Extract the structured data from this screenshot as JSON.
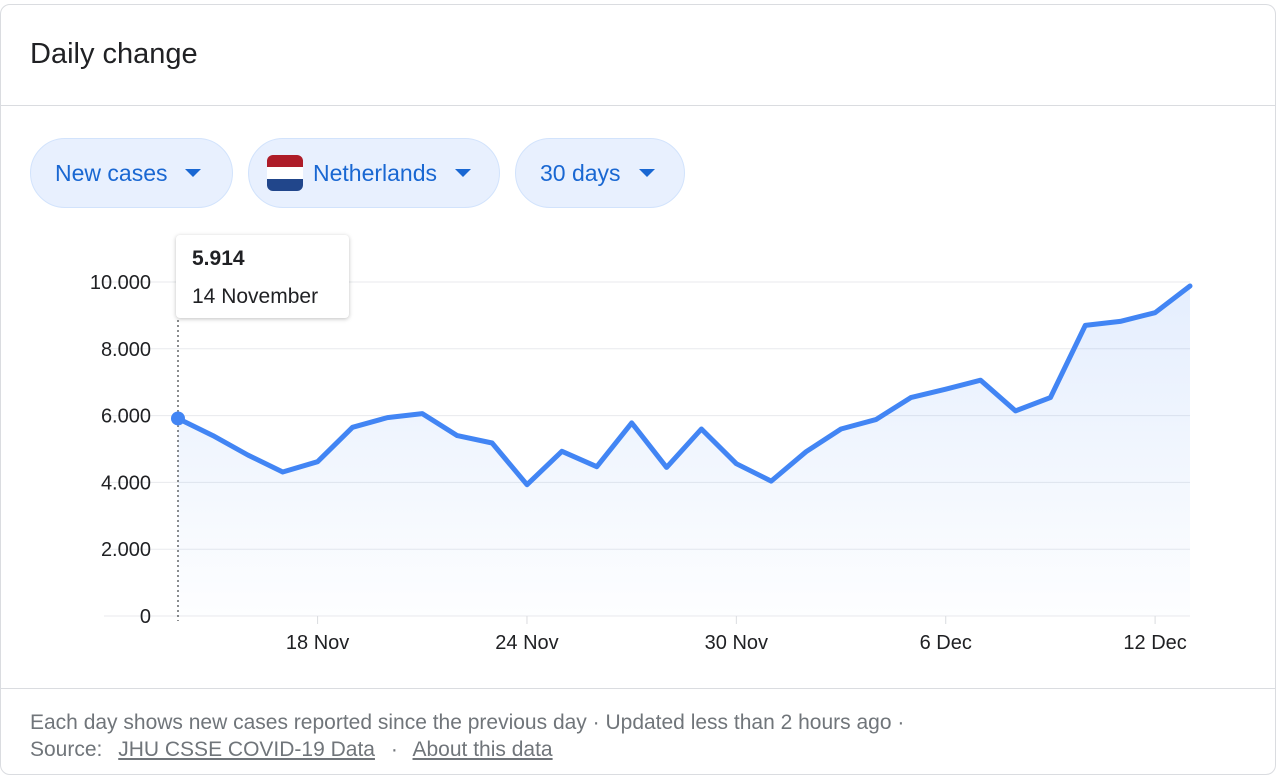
{
  "card": {
    "title": "Daily change"
  },
  "filters": {
    "metric": "New cases",
    "country": "Netherlands",
    "range": "30 days"
  },
  "flag_colors": [
    "#ae1c28",
    "#ffffff",
    "#21468b"
  ],
  "colors": {
    "line": "#4285f4",
    "accent": "#1967d2",
    "chip_bg": "#e8f0fe"
  },
  "tooltip": {
    "value": "5.914",
    "date": "14 November"
  },
  "chart_data": {
    "type": "area",
    "x": [
      "2020-11-14",
      "2020-11-15",
      "2020-11-16",
      "2020-11-17",
      "2020-11-18",
      "2020-11-19",
      "2020-11-20",
      "2020-11-21",
      "2020-11-22",
      "2020-11-23",
      "2020-11-24",
      "2020-11-25",
      "2020-11-26",
      "2020-11-27",
      "2020-11-28",
      "2020-11-29",
      "2020-11-30",
      "2020-12-01",
      "2020-12-02",
      "2020-12-03",
      "2020-12-04",
      "2020-12-05",
      "2020-12-06",
      "2020-12-07",
      "2020-12-08",
      "2020-12-09",
      "2020-12-10",
      "2020-12-11",
      "2020-12-12",
      "2020-12-13"
    ],
    "values": [
      5914,
      5400,
      4820,
      4310,
      4620,
      5650,
      5940,
      6060,
      5400,
      5180,
      3930,
      4930,
      4470,
      5780,
      4450,
      5600,
      4560,
      4040,
      4920,
      5600,
      5880,
      6540,
      6790,
      7060,
      6140,
      6540,
      8700,
      8820,
      9080,
      9880
    ],
    "ylim": [
      0,
      10000
    ],
    "y_ticks": [
      0,
      2000,
      4000,
      6000,
      8000,
      10000
    ],
    "y_tick_labels": [
      "0",
      "2.000",
      "4.000",
      "6.000",
      "8.000",
      "10.000"
    ],
    "x_tick_labels": [
      {
        "date": "2020-11-18",
        "label": "18 Nov"
      },
      {
        "date": "2020-11-24",
        "label": "24 Nov"
      },
      {
        "date": "2020-11-30",
        "label": "30 Nov"
      },
      {
        "date": "2020-12-06",
        "label": "6 Dec"
      },
      {
        "date": "2020-12-12",
        "label": "12 Dec"
      }
    ],
    "highlight_index": 0,
    "grid": true
  },
  "footer": {
    "note": "Each day shows new cases reported since the previous day · Updated less than 2 hours ago  ·",
    "source_label": "Source:",
    "source_link": "JHU CSSE COVID-19 Data",
    "separator": "·",
    "about_link": "About this data"
  }
}
